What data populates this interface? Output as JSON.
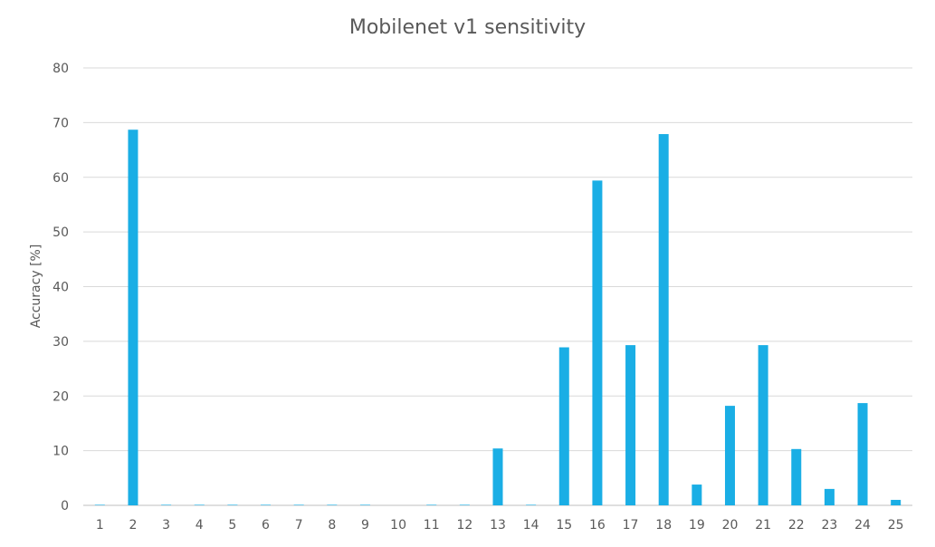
{
  "chart_data": {
    "type": "bar",
    "title": "Mobilenet v1 sensitivity",
    "xlabel": "",
    "ylabel": "Accuracy [%]",
    "ylim": [
      0,
      80
    ],
    "yticks": [
      0,
      10,
      20,
      30,
      40,
      50,
      60,
      70,
      80
    ],
    "grid": true,
    "legend": "none",
    "bar_color": "#1AAEE5",
    "categories": [
      "1",
      "2",
      "3",
      "4",
      "5",
      "6",
      "7",
      "8",
      "9",
      "10",
      "11",
      "12",
      "13",
      "14",
      "15",
      "16",
      "17",
      "18",
      "19",
      "20",
      "21",
      "22",
      "23",
      "24",
      "25"
    ],
    "values": [
      0.1,
      68.7,
      0.1,
      0.1,
      0.1,
      0.1,
      0.1,
      0.1,
      0.1,
      0.0,
      0.1,
      0.1,
      10.4,
      0.1,
      28.9,
      59.4,
      29.3,
      67.9,
      3.8,
      18.2,
      29.3,
      10.3,
      3.0,
      18.7,
      1.0
    ]
  }
}
